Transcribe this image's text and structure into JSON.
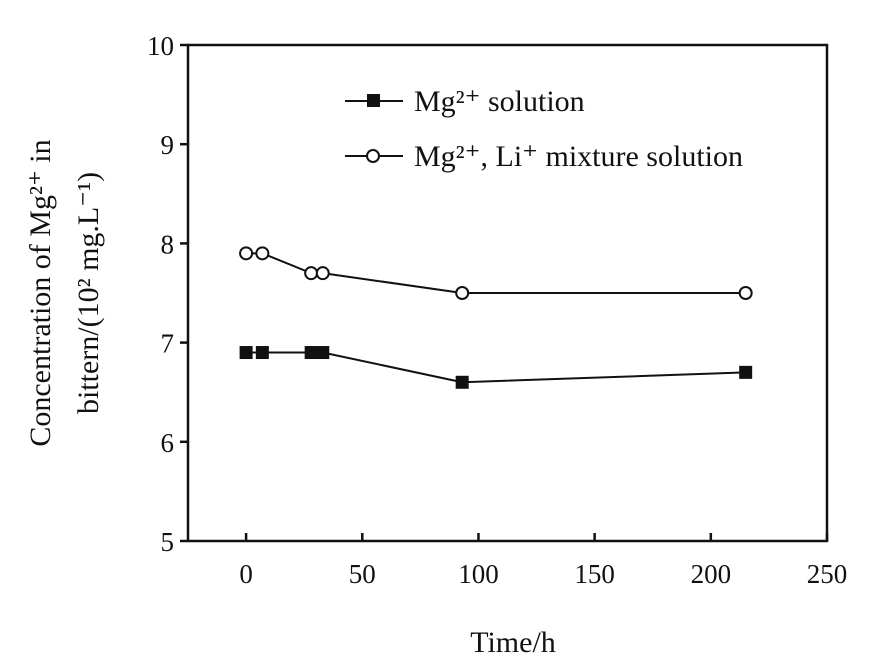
{
  "chart_data": {
    "type": "line",
    "xlabel": "Time/h",
    "ylabel_line1": "Concentration of Mg²⁺ in",
    "ylabel_line2": "bittern/(10² mg.L⁻¹)",
    "xlim": [
      -25,
      250
    ],
    "ylim": [
      5,
      10
    ],
    "xticks": [
      0,
      50,
      100,
      150,
      200,
      250
    ],
    "yticks": [
      5,
      6,
      7,
      8,
      9,
      10
    ],
    "legend_position": "top-right",
    "grid": false,
    "series": [
      {
        "name": "Mg²⁺ solution",
        "marker": "filled-square",
        "x": [
          0,
          7,
          28,
          33,
          93,
          215
        ],
        "y": [
          6.9,
          6.9,
          6.9,
          6.9,
          6.6,
          6.7
        ]
      },
      {
        "name": "Mg²⁺, Li⁺ mixture solution",
        "marker": "open-circle",
        "x": [
          0,
          7,
          28,
          33,
          93,
          215
        ],
        "y": [
          7.9,
          7.9,
          7.7,
          7.7,
          7.5,
          7.5
        ]
      }
    ],
    "line_color": "#111111"
  }
}
